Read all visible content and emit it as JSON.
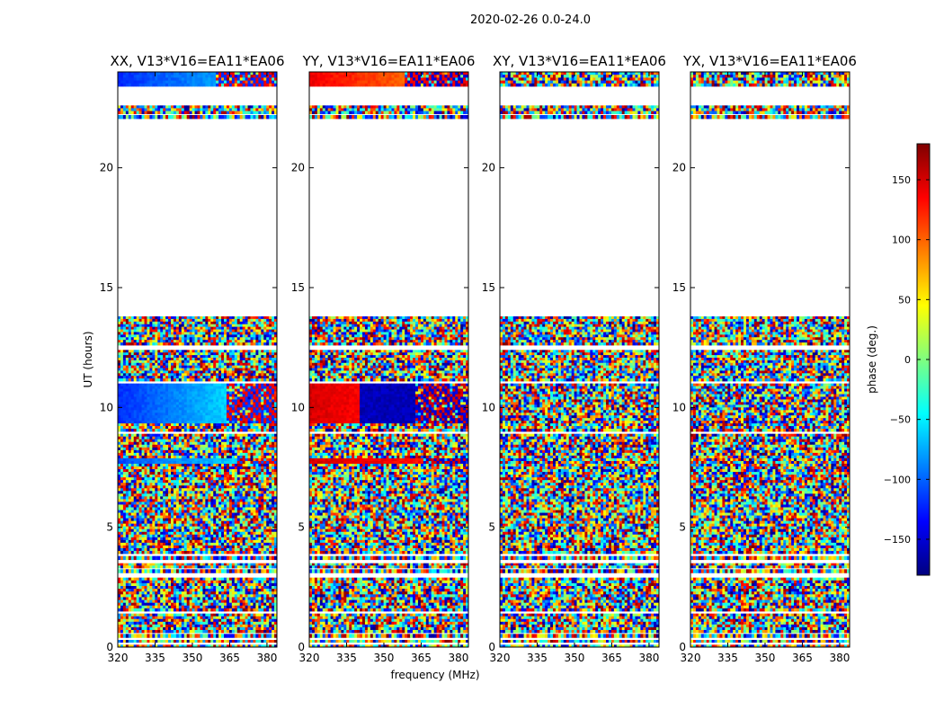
{
  "figure": {
    "suptitle": "2020-02-26 0.0-24.0",
    "xlabel": "frequency (MHz)",
    "ylabel": "UT (hours)"
  },
  "colorbar": {
    "label": "phase (deg.)",
    "range": [
      -180,
      180
    ],
    "ticks": [
      -150,
      -100,
      -50,
      0,
      50,
      100,
      150
    ],
    "tick_labels": [
      "−150",
      "−100",
      "−50",
      "0",
      "50",
      "100",
      "150"
    ],
    "colormap": [
      "#00007f",
      "#0000ff",
      "#007fff",
      "#00ffff",
      "#7fff7f",
      "#ffff00",
      "#ff7f00",
      "#ff0000",
      "#7f0000"
    ]
  },
  "chart_data": [
    {
      "type": "heatmap",
      "title": "XX, V13*V16=EA11*EA06",
      "xlabel": "",
      "ylabel": "UT (hours)",
      "xlim": [
        320,
        384
      ],
      "ylim": [
        0,
        24
      ],
      "x_ticks": [
        320,
        335,
        350,
        365,
        380
      ],
      "y_ticks": [
        0,
        5,
        10,
        15,
        20
      ],
      "coherent_regions": [
        {
          "y0": 9.3,
          "y1": 11.0,
          "phase_start": -120,
          "phase_end": -60,
          "fringe_from": 364
        },
        {
          "y0": 23.4,
          "y1": 24.0,
          "phase_start": -120,
          "phase_end": -80,
          "fringe_from": 360
        },
        {
          "y0": 7.6,
          "y1": 7.85,
          "phase_start": -110,
          "phase_end": -60,
          "fringe_from": 368
        }
      ]
    },
    {
      "type": "heatmap",
      "title": "YY, V13*V16=EA11*EA06",
      "xlabel": "frequency (MHz)",
      "ylabel": "",
      "xlim": [
        320,
        384
      ],
      "ylim": [
        0,
        24
      ],
      "x_ticks": [
        320,
        335,
        350,
        365,
        380
      ],
      "y_ticks": [
        0,
        5,
        10,
        15,
        20
      ],
      "coherent_regions": [
        {
          "y0": 9.3,
          "y1": 11.0,
          "phase_start": 150,
          "phase_end": 120,
          "switch_at": 340,
          "phase_after": -160,
          "fringe_from": 363
        },
        {
          "y0": 23.4,
          "y1": 24.0,
          "phase_start": 140,
          "phase_end": 100,
          "fringe_from": 358
        },
        {
          "y0": 7.6,
          "y1": 7.85,
          "phase_start": 150,
          "phase_end": 130,
          "fringe_from": 366
        }
      ]
    },
    {
      "type": "heatmap",
      "title": "XY, V13*V16=EA11*EA06",
      "xlabel": "",
      "ylabel": "",
      "xlim": [
        320,
        384
      ],
      "ylim": [
        0,
        24
      ],
      "x_ticks": [
        320,
        335,
        350,
        365,
        380
      ],
      "y_ticks": [
        0,
        5,
        10,
        15,
        20
      ],
      "coherent_regions": []
    },
    {
      "type": "heatmap",
      "title": "YX, V13*V16=EA11*EA06",
      "xlabel": "",
      "ylabel": "",
      "xlim": [
        320,
        384
      ],
      "ylim": [
        0,
        24
      ],
      "x_ticks": [
        320,
        335,
        350,
        365,
        380
      ],
      "y_ticks": [
        0,
        5,
        10,
        15,
        20
      ],
      "coherent_regions": []
    }
  ],
  "data_bands_ut": [
    [
      0.0,
      0.1
    ],
    [
      0.2,
      0.3
    ],
    [
      0.4,
      0.55
    ],
    [
      0.6,
      1.4
    ],
    [
      1.5,
      2.9
    ],
    [
      3.1,
      3.25
    ],
    [
      3.3,
      3.5
    ],
    [
      3.65,
      3.8
    ],
    [
      3.9,
      8.9
    ],
    [
      9.0,
      11.0
    ],
    [
      11.1,
      12.4
    ],
    [
      12.6,
      13.8
    ],
    [
      22.05,
      22.2
    ],
    [
      22.25,
      22.6
    ],
    [
      23.4,
      24.0
    ]
  ]
}
